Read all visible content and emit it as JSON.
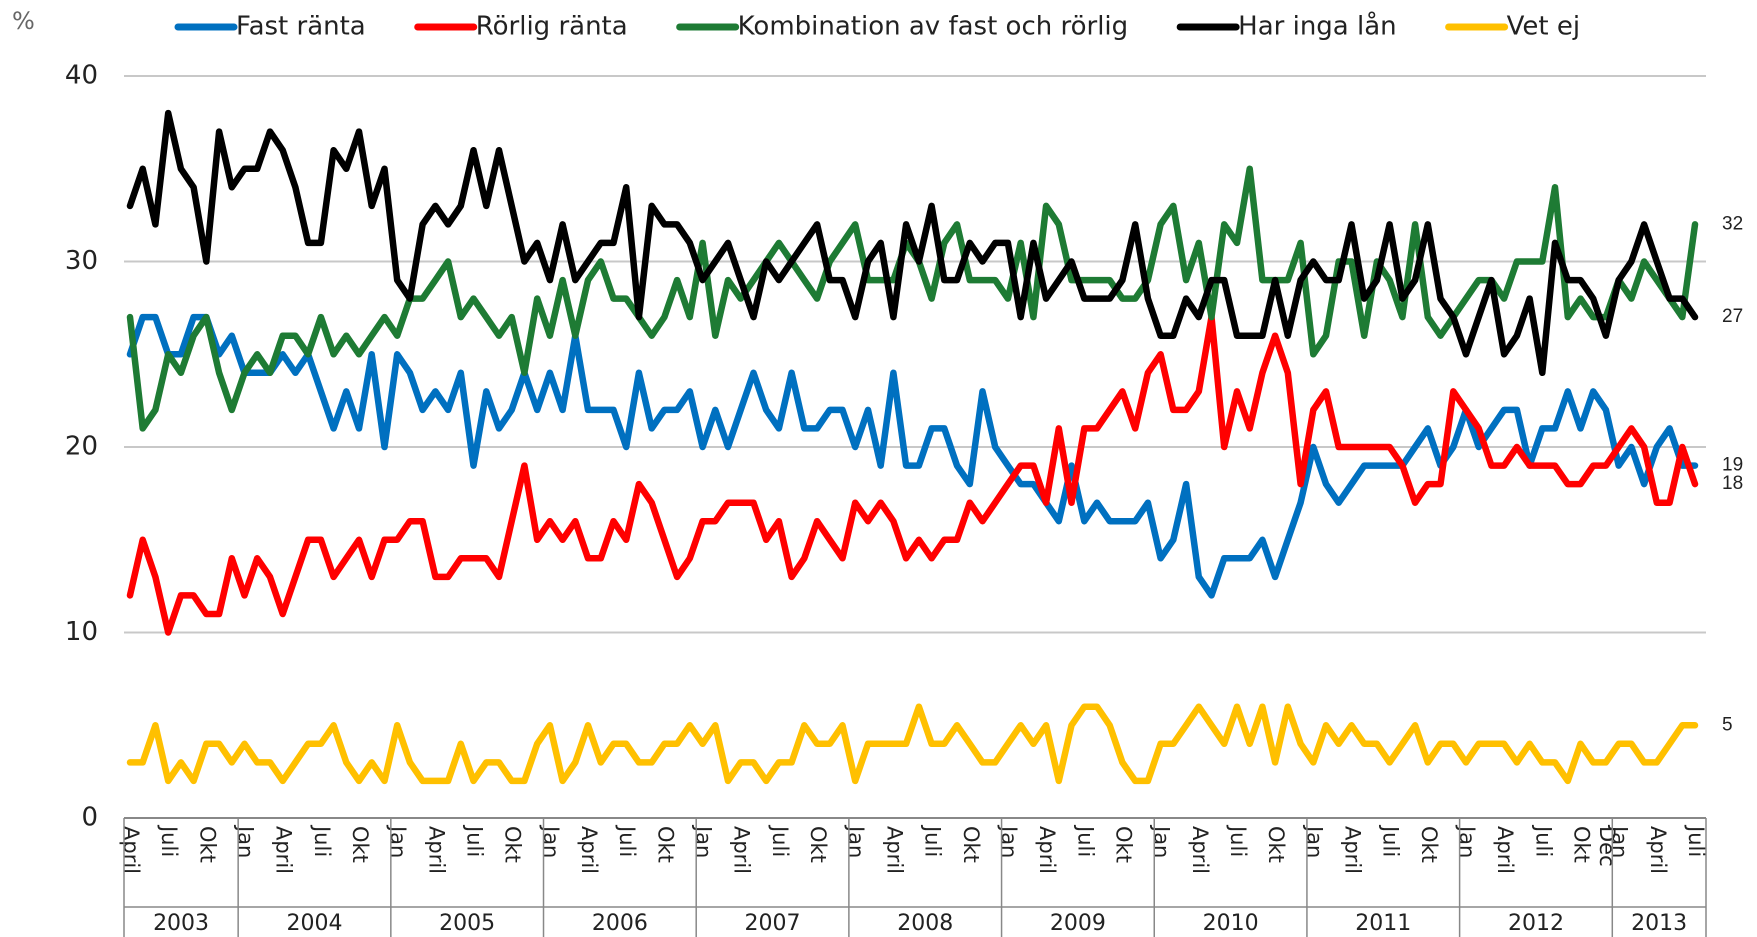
{
  "chart_data": {
    "type": "line",
    "y_label": "%",
    "categories": [
      "April",
      null,
      null,
      "Juli",
      null,
      null,
      "Okt",
      null,
      null,
      "Jan",
      null,
      null,
      "April",
      null,
      null,
      "Juli",
      null,
      null,
      "Okt",
      null,
      null,
      "Jan",
      null,
      null,
      "April",
      null,
      null,
      "Juli",
      null,
      null,
      "Okt",
      null,
      null,
      "Jan",
      null,
      null,
      "April",
      null,
      null,
      "Juli",
      null,
      null,
      "Okt",
      null,
      null,
      "Jan",
      null,
      null,
      "April",
      null,
      null,
      "Juli",
      null,
      null,
      "Okt",
      null,
      null,
      "Jan",
      null,
      null,
      "April",
      null,
      null,
      "Juli",
      null,
      null,
      "Okt",
      null,
      null,
      "Jan",
      null,
      null,
      "April",
      null,
      null,
      "Juli",
      null,
      null,
      "Okt",
      null,
      null,
      "Jan",
      null,
      null,
      "April",
      null,
      null,
      "Juli",
      null,
      null,
      "Okt",
      null,
      null,
      "Jan",
      null,
      null,
      "April",
      null,
      null,
      "Juli",
      null,
      null,
      "Okt",
      null,
      null,
      "Jan",
      null,
      null,
      "April",
      null,
      null,
      "Juli",
      null,
      null,
      "Okt",
      null,
      "Dec",
      "Jan",
      null,
      null,
      "April",
      null,
      null,
      "Juli"
    ],
    "years": [
      "2003",
      "2004",
      "2005",
      "2006",
      "2007",
      "2008",
      "2009",
      "2010",
      "2011",
      "2012",
      "2013"
    ],
    "series": [
      {
        "name": "Fast ränta",
        "color": "#0070c0",
        "values": [
          25,
          27,
          27,
          25,
          25,
          27,
          27,
          25,
          26,
          24,
          24,
          24,
          25,
          24,
          25,
          23,
          21,
          23,
          21,
          25,
          20,
          25,
          24,
          22,
          23,
          22,
          24,
          19,
          23,
          21,
          22,
          24,
          22,
          24,
          22,
          26,
          22,
          22,
          22,
          20,
          24,
          21,
          22,
          22,
          23,
          20,
          22,
          20,
          22,
          24,
          22,
          21,
          24,
          21,
          21,
          22,
          22,
          20,
          22,
          19,
          24,
          19,
          19,
          21,
          21,
          19,
          18,
          23,
          20,
          19,
          18,
          18,
          17,
          16,
          19,
          16,
          17,
          16,
          16,
          16,
          17,
          14,
          15,
          18,
          13,
          12,
          14,
          14,
          14,
          15,
          13,
          15,
          17,
          20,
          18,
          17,
          18,
          19,
          19,
          19,
          19,
          20,
          21,
          19,
          20,
          22,
          20,
          21,
          22,
          22,
          19,
          21,
          21,
          23,
          21,
          23,
          22,
          19,
          20,
          18,
          20,
          21,
          19,
          19
        ]
      },
      {
        "name": "Rörlig ränta",
        "color": "#ff0000",
        "values": [
          12,
          15,
          13,
          10,
          12,
          12,
          11,
          11,
          14,
          12,
          14,
          13,
          11,
          13,
          15,
          15,
          13,
          14,
          15,
          13,
          15,
          15,
          16,
          16,
          13,
          13,
          14,
          14,
          14,
          13,
          16,
          19,
          15,
          16,
          15,
          16,
          14,
          14,
          16,
          15,
          18,
          17,
          15,
          13,
          14,
          16,
          16,
          17,
          17,
          17,
          15,
          16,
          13,
          14,
          16,
          15,
          14,
          17,
          16,
          17,
          16,
          14,
          15,
          14,
          15,
          15,
          17,
          16,
          17,
          18,
          19,
          19,
          17,
          21,
          17,
          21,
          21,
          22,
          23,
          21,
          24,
          25,
          22,
          22,
          23,
          27,
          20,
          23,
          21,
          24,
          26,
          24,
          18,
          22,
          23,
          20,
          20,
          20,
          20,
          20,
          19,
          17,
          18,
          18,
          23,
          22,
          21,
          19,
          19,
          20,
          19,
          19,
          19,
          18,
          18,
          19,
          19,
          20,
          21,
          20,
          17,
          17,
          20,
          18
        ]
      },
      {
        "name": "Kombination av fast och rörlig",
        "color": "#1e7b34",
        "values": [
          27,
          21,
          22,
          25,
          24,
          26,
          27,
          24,
          22,
          24,
          25,
          24,
          26,
          26,
          25,
          27,
          25,
          26,
          25,
          26,
          27,
          26,
          28,
          28,
          29,
          30,
          27,
          28,
          27,
          26,
          27,
          24,
          28,
          26,
          29,
          26,
          29,
          30,
          28,
          28,
          27,
          26,
          27,
          29,
          27,
          31,
          26,
          29,
          28,
          29,
          30,
          31,
          30,
          29,
          28,
          30,
          31,
          32,
          29,
          29,
          29,
          31,
          30,
          28,
          31,
          32,
          29,
          29,
          29,
          28,
          31,
          27,
          33,
          32,
          29,
          29,
          29,
          29,
          28,
          28,
          29,
          32,
          33,
          29,
          31,
          27,
          32,
          31,
          35,
          29,
          29,
          29,
          31,
          25,
          26,
          30,
          30,
          26,
          30,
          29,
          27,
          32,
          27,
          26,
          27,
          28,
          29,
          29,
          28,
          30,
          30,
          30,
          34,
          27,
          28,
          27,
          27,
          29,
          28,
          30,
          29,
          28,
          27,
          32
        ]
      },
      {
        "name": "Har inga lån",
        "color": "#000000",
        "values": [
          33,
          35,
          32,
          38,
          35,
          34,
          30,
          37,
          34,
          35,
          35,
          37,
          36,
          34,
          31,
          31,
          36,
          35,
          37,
          33,
          35,
          29,
          28,
          32,
          33,
          32,
          33,
          36,
          33,
          36,
          33,
          30,
          31,
          29,
          32,
          29,
          30,
          31,
          31,
          34,
          27,
          33,
          32,
          32,
          31,
          29,
          30,
          31,
          29,
          27,
          30,
          29,
          30,
          31,
          32,
          29,
          29,
          27,
          30,
          31,
          27,
          32,
          30,
          33,
          29,
          29,
          31,
          30,
          31,
          31,
          27,
          31,
          28,
          29,
          30,
          28,
          28,
          28,
          29,
          32,
          28,
          26,
          26,
          28,
          27,
          29,
          29,
          26,
          26,
          26,
          29,
          26,
          29,
          30,
          29,
          29,
          32,
          28,
          29,
          32,
          28,
          29,
          32,
          28,
          27,
          25,
          27,
          29,
          25,
          26,
          28,
          24,
          31,
          29,
          29,
          28,
          26,
          29,
          30,
          32,
          30,
          28,
          28,
          27
        ]
      },
      {
        "name": "Vet ej",
        "color": "#ffc000",
        "values": [
          3,
          3,
          5,
          2,
          3,
          2,
          4,
          4,
          3,
          4,
          3,
          3,
          2,
          3,
          4,
          4,
          5,
          3,
          2,
          3,
          2,
          5,
          3,
          2,
          2,
          2,
          4,
          2,
          3,
          3,
          2,
          2,
          4,
          5,
          2,
          3,
          5,
          3,
          4,
          4,
          3,
          3,
          4,
          4,
          5,
          4,
          5,
          2,
          3,
          3,
          2,
          3,
          3,
          5,
          4,
          4,
          5,
          2,
          4,
          4,
          4,
          4,
          6,
          4,
          4,
          5,
          4,
          3,
          3,
          4,
          5,
          4,
          5,
          2,
          5,
          6,
          6,
          5,
          3,
          2,
          2,
          4,
          4,
          5,
          6,
          5,
          4,
          6,
          4,
          6,
          3,
          6,
          4,
          3,
          5,
          4,
          5,
          4,
          4,
          3,
          4,
          5,
          3,
          4,
          4,
          3,
          4,
          4,
          4,
          3,
          4,
          3,
          3,
          2,
          4,
          3,
          3,
          4,
          4,
          3,
          3,
          4,
          5,
          5
        ]
      }
    ],
    "ylim": [
      0,
      40
    ],
    "yticks": [
      0,
      10,
      20,
      30,
      40
    ],
    "grid": true,
    "legend": "top"
  }
}
